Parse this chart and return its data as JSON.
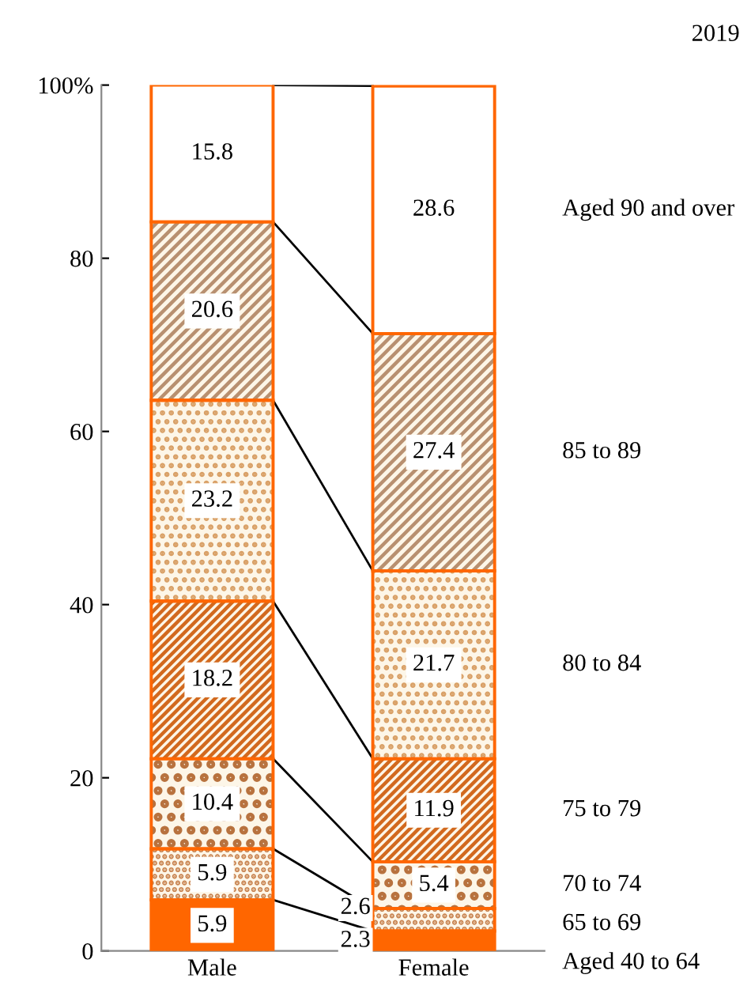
{
  "chart_data": {
    "type": "bar",
    "stacked": true,
    "title": "2019",
    "categories": [
      "Male",
      "Female"
    ],
    "series": [
      {
        "name": "Aged 40 to 64",
        "color": "#ff6600",
        "values": [
          5.9,
          2.3
        ]
      },
      {
        "name": "65 to 69",
        "color": "#c8824e",
        "values": [
          5.9,
          2.6
        ]
      },
      {
        "name": "70 to 74",
        "color": "#b8723e",
        "values": [
          10.4,
          5.4
        ]
      },
      {
        "name": "75 to 79",
        "color": "#d2691e",
        "values": [
          18.2,
          11.9
        ]
      },
      {
        "name": "80 to 84",
        "color": "#d9a066",
        "values": [
          23.2,
          21.7
        ]
      },
      {
        "name": "85 to 89",
        "color": "#b89070",
        "values": [
          20.6,
          27.4
        ]
      },
      {
        "name": "Aged 90 and over",
        "color": "#ffffff",
        "values": [
          15.8,
          28.6
        ]
      }
    ],
    "ylim": [
      0,
      100
    ],
    "yticks": [
      0,
      20,
      40,
      60,
      80,
      {
        "value": 100,
        "label": "100%"
      }
    ],
    "data_labels": true,
    "legend": "right",
    "grid": false
  }
}
